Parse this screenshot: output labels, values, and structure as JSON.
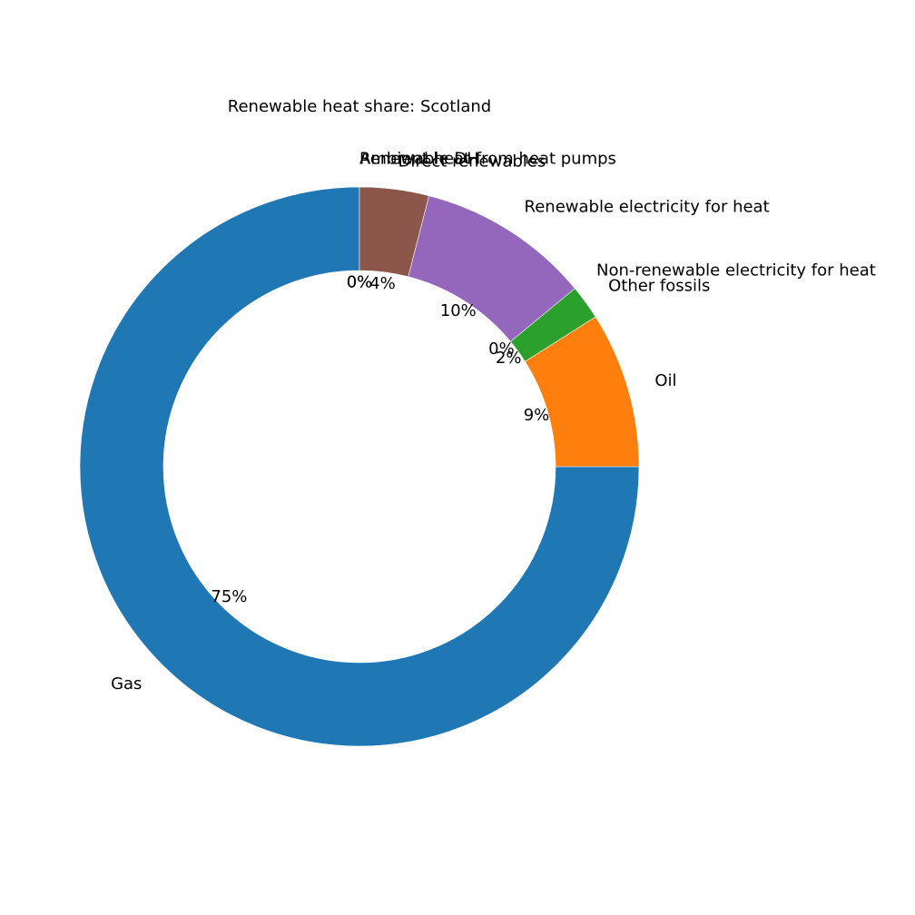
{
  "chart_data": {
    "type": "pie",
    "style": "donut",
    "title": "Renewable heat share: Scotland",
    "labels": [
      "Gas",
      "Oil",
      "Other fossils",
      "Non-renewable electricity for heat",
      "Renewable electricity for heat",
      "Direct renewables",
      "Renewable DH",
      "Ambient heat from heat pumps"
    ],
    "values": [
      75,
      9,
      2,
      0,
      10,
      4,
      0,
      0
    ],
    "value_labels": [
      "75%",
      "9%",
      "2%",
      "0%",
      "10%",
      "4%",
      "0%",
      "0%"
    ],
    "colors": [
      "#1f77b4",
      "#ff7f0e",
      "#2ca02c",
      "#d62728",
      "#9467bd",
      "#8c564b",
      "#e377c2",
      "#7f7f7f"
    ],
    "start": "top",
    "direction": "counterclockwise",
    "legend": "none"
  }
}
